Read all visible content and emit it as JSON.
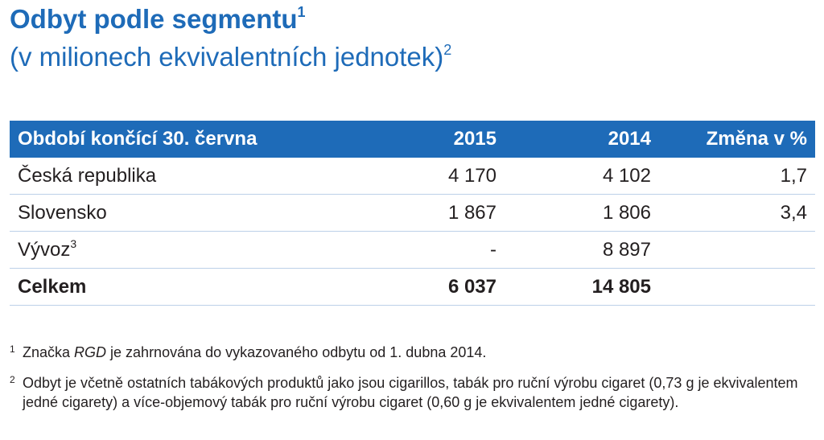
{
  "title": {
    "text": "Odbyt podle segmentu",
    "sup": "1"
  },
  "subtitle": {
    "text": "(v milionech ekvivalentních jednotek)",
    "sup": "2"
  },
  "table": {
    "headers": {
      "label": "Období končící 30. června",
      "y2015": "2015",
      "y2014": "2014",
      "change": "Změna v %"
    },
    "rows": [
      {
        "label": "Česká republika",
        "label_sup": "",
        "y2015": "4 170",
        "y2014": "4 102",
        "change": "1,7"
      },
      {
        "label": "Slovensko",
        "label_sup": "",
        "y2015": "1 867",
        "y2014": "1 806",
        "change": "3,4"
      },
      {
        "label": "Vývoz",
        "label_sup": "3",
        "y2015": "-",
        "y2014": "8 897",
        "change": ""
      }
    ],
    "total": {
      "label": "Celkem",
      "y2015": "6 037",
      "y2014": "14 805",
      "change": ""
    }
  },
  "footnotes": [
    {
      "mark": "1",
      "before": "Značka ",
      "emph": "RGD",
      "after": " je zahrnována do vykazovaného odbytu od 1. dubna 2014."
    },
    {
      "mark": "2",
      "text": "Odbyt je včetně ostatních tabákových produktů jako jsou cigarillos, tabák pro ruční výrobu cigaret (0,73 g je ekvivalentem jedné cigarety) a více-objemový tabák pro ruční výrobu cigaret (0,60 g je ekvivalentem jedné cigarety)."
    }
  ],
  "colors": {
    "accent": "#1e6bb8",
    "header_text": "#ffffff",
    "row_divider": "#bcd0e8",
    "body_text": "#231f20"
  }
}
